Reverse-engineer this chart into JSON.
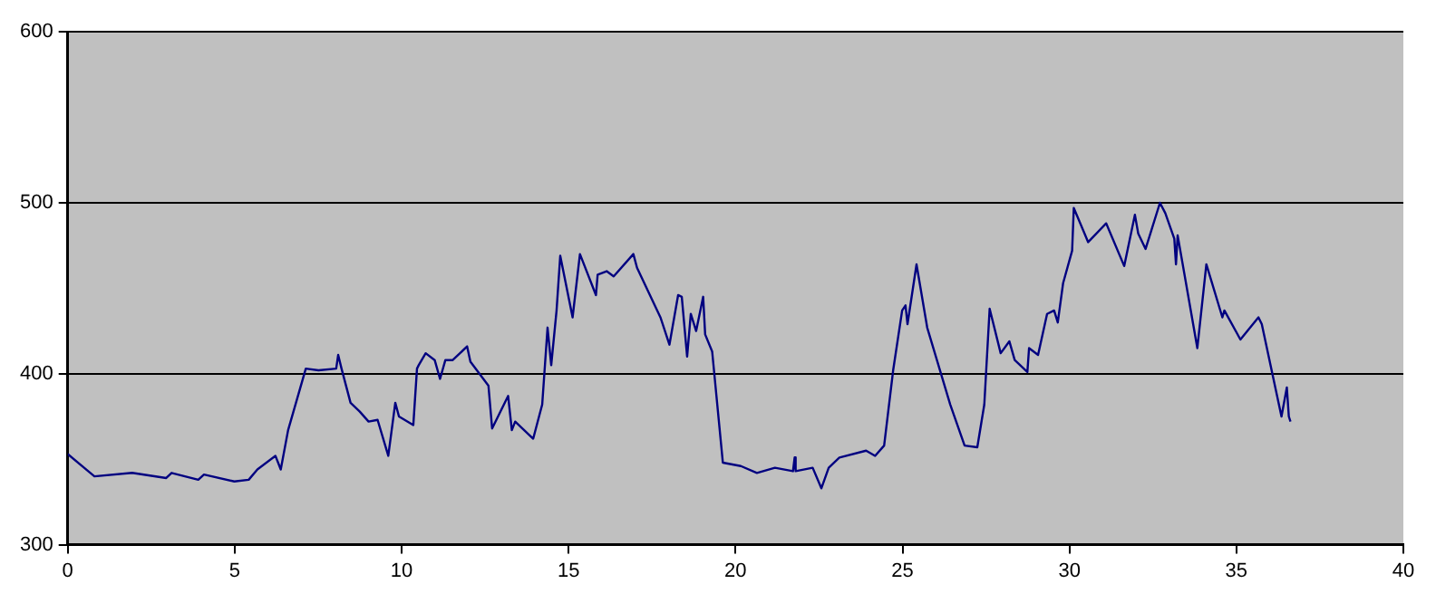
{
  "chart_data": {
    "type": "line",
    "xlim": [
      0,
      40
    ],
    "xticks": [
      0,
      5,
      10,
      15,
      20,
      25,
      30,
      35,
      40
    ],
    "ylim": [
      300,
      600
    ],
    "yticks": [
      300,
      400,
      500,
      600
    ],
    "grid": "y",
    "legend": false,
    "marker": "none",
    "line_style": "solid",
    "series": [
      {
        "color": "#000080",
        "x": [
          0,
          0.8,
          1.93,
          2.95,
          3.11,
          3.91,
          4.08,
          4.99,
          5.42,
          5.68,
          6.22,
          6.38,
          6.6,
          7.13,
          7.51,
          8.04,
          8.1,
          8.2,
          8.47,
          8.74,
          9.01,
          9.28,
          9.6,
          9.81,
          9.92,
          10.35,
          10.46,
          10.51,
          10.72,
          10.99,
          11.15,
          11.31,
          11.53,
          11.96,
          12.06,
          12.6,
          12.71,
          13.19,
          13.3,
          13.4,
          13.94,
          14.21,
          14.37,
          14.48,
          14.64,
          14.75,
          15.12,
          15.34,
          15.82,
          15.87,
          16.14,
          16.35,
          16.94,
          17.05,
          17.75,
          18.02,
          18.28,
          18.39,
          18.55,
          18.66,
          18.82,
          19.03,
          19.09,
          19.3,
          19.62,
          20.16,
          20.64,
          21.18,
          21.72,
          21.77,
          21.8,
          22.31,
          22.57,
          22.79,
          23.11,
          23.91,
          24.18,
          24.45,
          24.72,
          24.99,
          25.09,
          25.15,
          25.42,
          25.74,
          26.43,
          26.86,
          27.24,
          27.45,
          27.61,
          27.94,
          28.2,
          28.36,
          28.74,
          28.79,
          29.06,
          29.33,
          29.54,
          29.65,
          29.81,
          30.08,
          30.13,
          30.56,
          31.1,
          31.64,
          31.96,
          32.06,
          32.28,
          32.71,
          32.87,
          33.14,
          33.19,
          33.24,
          33.83,
          34.1,
          34.58,
          34.64,
          35.12,
          35.66,
          35.76,
          36.35,
          36.51,
          36.57,
          36.62
        ],
        "values": [
          353,
          340,
          342,
          339,
          342,
          338,
          341,
          337,
          338,
          344,
          352,
          344,
          367,
          403,
          402,
          403,
          411,
          403,
          383,
          378,
          372,
          373,
          352,
          383,
          375,
          370,
          403,
          405,
          412,
          408,
          397,
          408,
          408,
          416,
          407,
          393,
          368,
          387,
          367,
          372,
          362,
          382,
          427,
          405,
          437,
          469,
          433,
          470,
          446,
          458,
          460,
          457,
          470,
          462,
          433,
          417,
          446,
          445,
          410,
          435,
          425,
          445,
          423,
          413,
          348,
          346,
          342,
          345,
          343,
          351,
          343,
          345,
          333,
          345,
          351,
          355,
          352,
          358,
          402,
          437,
          440,
          429,
          464,
          427,
          382,
          358,
          357,
          382,
          438,
          412,
          419,
          408,
          401,
          415,
          411,
          435,
          437,
          430,
          453,
          472,
          497,
          477,
          488,
          463,
          493,
          482,
          473,
          500,
          494,
          479,
          464,
          481,
          415,
          464,
          433,
          437,
          420,
          433,
          429,
          375,
          392,
          375,
          372
        ]
      }
    ]
  }
}
